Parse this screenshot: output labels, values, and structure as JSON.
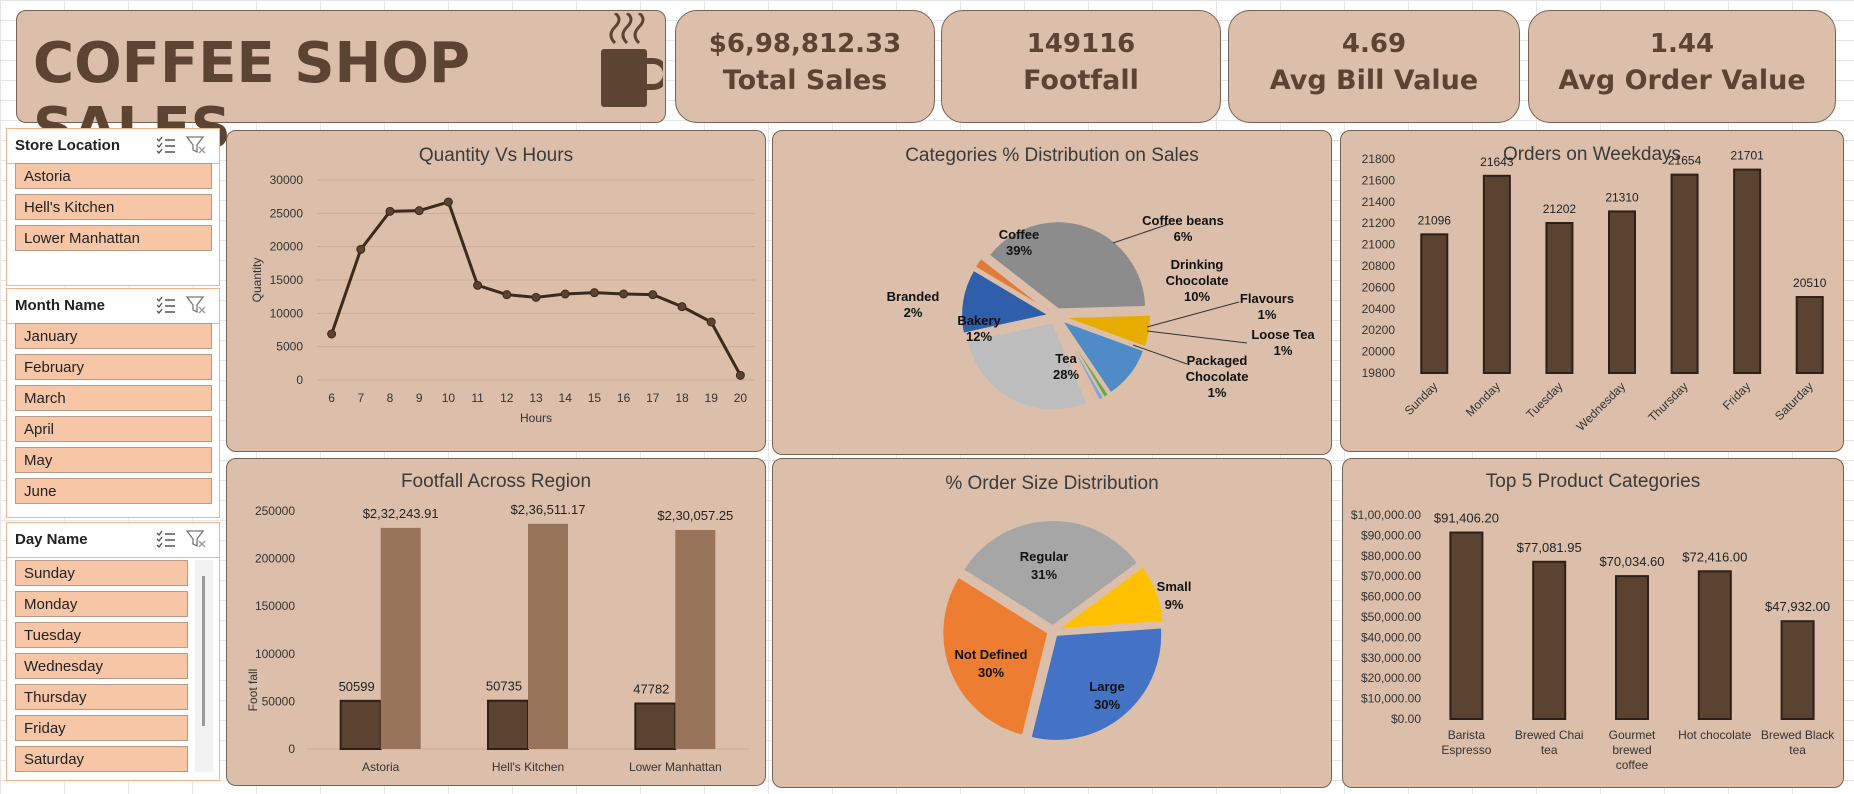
{
  "header": {
    "title": "COFFEE SHOP SALES"
  },
  "kpis": [
    {
      "value": "$6,98,812.33",
      "label": "Total Sales"
    },
    {
      "value": "149116",
      "label": "Footfall"
    },
    {
      "value": "4.69",
      "label": "Avg Bill Value"
    },
    {
      "value": "1.44",
      "label": "Avg Order Value"
    }
  ],
  "slicers": {
    "store": {
      "title": "Store Location",
      "items": [
        "Astoria",
        "Hell's Kitchen",
        "Lower Manhattan"
      ]
    },
    "month": {
      "title": "Month Name",
      "items": [
        "January",
        "February",
        "March",
        "April",
        "May",
        "June"
      ]
    },
    "day": {
      "title": "Day Name",
      "items": [
        "Sunday",
        "Monday",
        "Tuesday",
        "Wednesday",
        "Thursday",
        "Friday",
        "Saturday"
      ]
    }
  },
  "colors": {
    "panel": "#dbbfaa",
    "dark_brown": "#5c4433",
    "bar_brown": "#5b4331",
    "light_brown": "#98745a",
    "slicer_item": "#f6c6a7"
  },
  "chart_data": [
    {
      "id": "quantity_hours",
      "type": "line",
      "title": "Quantity Vs Hours",
      "xlabel": "Hours",
      "ylabel": "Quantity",
      "x": [
        6,
        7,
        8,
        9,
        10,
        11,
        12,
        13,
        14,
        15,
        16,
        17,
        18,
        19,
        20
      ],
      "values": [
        6900,
        19600,
        25300,
        25400,
        26700,
        14200,
        12800,
        12400,
        12900,
        13100,
        12900,
        12800,
        11000,
        8700,
        700
      ],
      "ylim": [
        0,
        30000
      ],
      "yticks": [
        "0",
        "5000",
        "10000",
        "15000",
        "20000",
        "25000",
        "30000"
      ],
      "grid": true
    },
    {
      "id": "category_distribution",
      "type": "pie",
      "title": "Categories  % Distribution on Sales",
      "slices": [
        {
          "label": "Coffee",
          "value": 39,
          "text": "39%",
          "color": "#8c8c8c"
        },
        {
          "label": "Coffee beans",
          "value": 6,
          "text": "6%",
          "color": "#e6ad00"
        },
        {
          "label": "Drinking Chocolate",
          "value": 10,
          "text": "10%",
          "color": "#4f8cc7"
        },
        {
          "label": "Flavours",
          "value": 1,
          "text": "1%",
          "color": "#6aa84f"
        },
        {
          "label": "Loose Tea",
          "value": 1,
          "text": "1%",
          "color": "#7ea6d8"
        },
        {
          "label": "Packaged Chocolate",
          "value": 1,
          "text": "1%",
          "color": "#e9b7a0"
        },
        {
          "label": "Tea",
          "value": 28,
          "text": "28%",
          "color": "#bdbdbd"
        },
        {
          "label": "Bakery",
          "value": 12,
          "text": "12%",
          "color": "#2f5eaa"
        },
        {
          "label": "Branded",
          "value": 2,
          "text": "2%",
          "color": "#e07b39"
        }
      ]
    },
    {
      "id": "orders_weekdays",
      "type": "bar",
      "title": "Orders on Weekdays",
      "categories": [
        "Sunday",
        "Monday",
        "Tuesday",
        "Wednesday",
        "Thursday",
        "Friday",
        "Saturday"
      ],
      "values": [
        21096,
        21643,
        21202,
        21310,
        21654,
        21701,
        20510
      ],
      "ylim": [
        19800,
        21800
      ],
      "yticks": [
        "19800",
        "20000",
        "20200",
        "20400",
        "20600",
        "20800",
        "21000",
        "21200",
        "21400",
        "21600",
        "21800"
      ]
    },
    {
      "id": "footfall_region",
      "type": "bar",
      "title": "Footfall Across Region",
      "ylabel": "Foot fall",
      "categories": [
        "Astoria",
        "Hell's Kitchen",
        "Lower Manhattan"
      ],
      "series": [
        {
          "values": [
            50599,
            50735,
            47782
          ],
          "labels": [
            "50599",
            "50735",
            "47782"
          ]
        },
        {
          "values": [
            232243.91,
            236511.17,
            230057.25
          ],
          "labels": [
            "$2,32,243.91",
            "$2,36,511.17",
            "$2,30,057.25"
          ]
        }
      ],
      "ylim": [
        0,
        250000
      ],
      "yticks": [
        "0",
        "50000",
        "100000",
        "150000",
        "200000",
        "250000"
      ]
    },
    {
      "id": "order_size",
      "type": "pie",
      "title": "% Order Size Distribution",
      "slices": [
        {
          "label": "Regular",
          "value": 31,
          "text": "31%",
          "color": "#a6a6a6"
        },
        {
          "label": "Small",
          "value": 9,
          "text": "9%",
          "color": "#ffc000"
        },
        {
          "label": "Large",
          "value": 30,
          "text": "30%",
          "color": "#4472c4"
        },
        {
          "label": "Not Defined",
          "value": 30,
          "text": "30%",
          "color": "#ed7d31"
        }
      ]
    },
    {
      "id": "top5_products",
      "type": "bar",
      "title": "Top 5 Product Categories",
      "categories": [
        "Barista Espresso",
        "Brewed Chai tea",
        "Gourmet brewed coffee",
        "Hot chocolate",
        "Brewed Black tea"
      ],
      "values": [
        91406.2,
        77081.95,
        70034.6,
        72416.0,
        47932.0
      ],
      "value_labels": [
        "$91,406.20",
        "$77,081.95",
        "$70,034.60",
        "$72,416.00",
        "$47,932.00"
      ],
      "ylim": [
        0,
        100000
      ],
      "yticks": [
        "$0.00",
        "$10,000.00",
        "$20,000.00",
        "$30,000.00",
        "$40,000.00",
        "$50,000.00",
        "$60,000.00",
        "$70,000.00",
        "$80,000.00",
        "$90,000.00",
        "$1,00,000.00"
      ]
    }
  ]
}
